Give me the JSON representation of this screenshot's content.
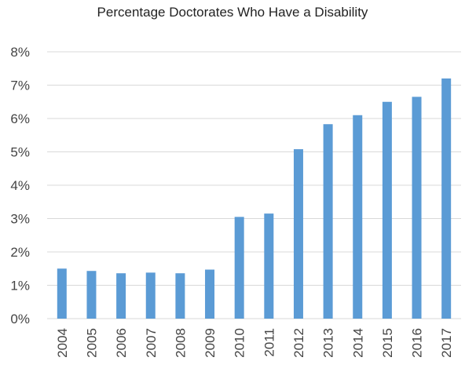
{
  "chart_data": {
    "type": "bar",
    "title": "Percentage Doctorates Who Have a Disability",
    "xlabel": "",
    "ylabel": "",
    "categories": [
      "2004",
      "2005",
      "2006",
      "2007",
      "2008",
      "2009",
      "2010",
      "2011",
      "2012",
      "2013",
      "2014",
      "2015",
      "2016",
      "2017"
    ],
    "values": [
      1.5,
      1.43,
      1.36,
      1.38,
      1.36,
      1.47,
      3.05,
      3.15,
      5.08,
      5.83,
      6.1,
      6.5,
      6.65,
      7.2
    ],
    "ylim": [
      0,
      8
    ],
    "y_ticks": [
      "0%",
      "1%",
      "2%",
      "3%",
      "4%",
      "5%",
      "6%",
      "7%",
      "8%"
    ],
    "y_unit": "%",
    "grid": true,
    "bar_color": "#5B9BD5",
    "grid_color": "#D9D9D9"
  }
}
